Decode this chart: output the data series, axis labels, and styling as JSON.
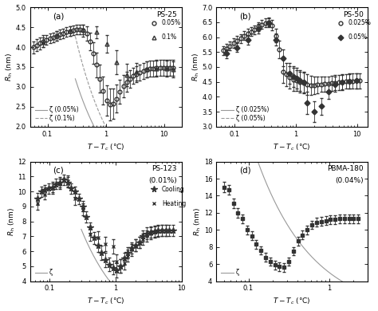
{
  "panels": [
    {
      "label": "(a)",
      "title": "PS-25",
      "legend_lines": [
        "ζ (0.05%)",
        "ζ (0.1%)"
      ],
      "legend_markers": [
        "0.05%",
        "0.1%"
      ],
      "marker_styles": [
        "o",
        "^"
      ],
      "marker_fills": [
        "open",
        "open"
      ],
      "ylim": [
        2.0,
        5.0
      ],
      "yticks": [
        2.0,
        2.5,
        3.0,
        3.5,
        4.0,
        4.5,
        5.0
      ],
      "xlim": [
        0.05,
        20
      ],
      "ylabel": "$R_\\mathrm{h}$ (nm)",
      "xlabel": "$T-T_c$ (°C)",
      "series1_x": [
        0.058,
        0.065,
        0.074,
        0.084,
        0.096,
        0.11,
        0.125,
        0.143,
        0.163,
        0.186,
        0.212,
        0.242,
        0.276,
        0.315,
        0.36,
        0.41,
        0.468,
        0.534,
        0.61,
        0.696,
        0.794,
        0.906,
        1.033,
        1.179,
        1.345,
        1.535,
        1.751,
        1.998,
        2.28,
        2.601,
        2.967,
        3.385,
        3.862,
        4.406,
        5.027,
        5.736,
        6.543,
        7.466,
        8.517,
        9.716,
        11.086,
        12.65,
        14.43
      ],
      "series1_y": [
        4.0,
        4.05,
        4.1,
        4.15,
        4.18,
        4.22,
        4.25,
        4.28,
        4.32,
        4.35,
        4.38,
        4.4,
        4.43,
        4.45,
        4.45,
        4.42,
        4.35,
        4.15,
        3.85,
        3.55,
        3.2,
        2.9,
        2.65,
        2.55,
        2.58,
        2.7,
        2.88,
        3.02,
        3.12,
        3.2,
        3.27,
        3.32,
        3.36,
        3.4,
        3.43,
        3.45,
        3.46,
        3.47,
        3.47,
        3.47,
        3.47,
        3.47,
        3.47
      ],
      "series1_yerr": [
        0.15,
        0.15,
        0.15,
        0.15,
        0.12,
        0.12,
        0.12,
        0.12,
        0.12,
        0.12,
        0.12,
        0.12,
        0.12,
        0.12,
        0.12,
        0.15,
        0.18,
        0.22,
        0.28,
        0.32,
        0.35,
        0.35,
        0.38,
        0.4,
        0.38,
        0.35,
        0.3,
        0.28,
        0.25,
        0.22,
        0.2,
        0.2,
        0.2,
        0.2,
        0.2,
        0.2,
        0.2,
        0.2,
        0.2,
        0.2,
        0.2,
        0.2,
        0.2
      ],
      "series2_x": [
        0.084,
        0.143,
        0.242,
        0.41,
        0.696,
        1.033,
        1.535,
        2.28,
        3.385,
        5.027,
        7.466,
        11.086,
        14.43
      ],
      "series2_y": [
        4.12,
        4.28,
        4.4,
        4.44,
        4.38,
        4.08,
        3.62,
        3.3,
        3.38,
        3.43,
        3.45,
        3.45,
        3.43
      ],
      "series2_yerr": [
        0.12,
        0.12,
        0.12,
        0.12,
        0.15,
        0.22,
        0.3,
        0.28,
        0.22,
        0.2,
        0.2,
        0.2,
        0.2
      ],
      "xi1_A": 1.5,
      "xi1_nu": 0.63,
      "xi2_A": 2.0,
      "xi2_nu": 0.63,
      "xi_xstart": 0.3,
      "xi_line_style": [
        "-",
        "--"
      ]
    },
    {
      "label": "(b)",
      "title": "PS-50",
      "legend_lines": [
        "ζ (0.025%)",
        "ζ (0.05%)"
      ],
      "legend_markers": [
        "0.025%",
        "0.05%"
      ],
      "marker_styles": [
        "o",
        "D"
      ],
      "marker_fills": [
        "open",
        "filled"
      ],
      "ylim": [
        3.0,
        7.0
      ],
      "yticks": [
        3.0,
        3.5,
        4.0,
        4.5,
        5.0,
        5.5,
        6.0,
        6.5,
        7.0
      ],
      "xlim": [
        0.05,
        15
      ],
      "ylabel": "$R_\\mathrm{h}$ (nm)",
      "xlabel": "$T-T_c$ (°C)",
      "series1_x": [
        0.065,
        0.074,
        0.084,
        0.096,
        0.11,
        0.125,
        0.143,
        0.163,
        0.186,
        0.212,
        0.242,
        0.276,
        0.315,
        0.36,
        0.41,
        0.468,
        0.534,
        0.61,
        0.696,
        0.794,
        0.906,
        1.033,
        1.179,
        1.345,
        1.535,
        1.751,
        1.998,
        2.28,
        2.601,
        2.967,
        3.385,
        3.862,
        4.406,
        5.027,
        5.736,
        6.543,
        7.466,
        8.517,
        9.716,
        11.086
      ],
      "series1_y": [
        5.55,
        5.62,
        5.7,
        5.8,
        5.88,
        5.95,
        6.05,
        6.12,
        6.18,
        6.25,
        6.35,
        6.42,
        6.48,
        6.5,
        6.4,
        6.05,
        5.58,
        4.85,
        4.75,
        4.65,
        4.58,
        4.55,
        4.5,
        4.46,
        4.42,
        4.38,
        4.38,
        4.4,
        4.42,
        4.43,
        4.44,
        4.46,
        4.47,
        4.48,
        4.5,
        4.52,
        4.53,
        4.53,
        4.54,
        4.54
      ],
      "series1_yerr": [
        0.15,
        0.15,
        0.15,
        0.15,
        0.15,
        0.15,
        0.15,
        0.15,
        0.15,
        0.15,
        0.15,
        0.15,
        0.15,
        0.15,
        0.18,
        0.22,
        0.3,
        0.38,
        0.38,
        0.38,
        0.38,
        0.35,
        0.35,
        0.35,
        0.35,
        0.32,
        0.3,
        0.28,
        0.25,
        0.25,
        0.25,
        0.25,
        0.25,
        0.25,
        0.25,
        0.25,
        0.25,
        0.25,
        0.25,
        0.25
      ],
      "series2_x": [
        0.074,
        0.11,
        0.163,
        0.242,
        0.36,
        0.468,
        0.61,
        0.794,
        0.906,
        1.033,
        1.179,
        1.345,
        1.535,
        1.998,
        2.601,
        3.385,
        4.406,
        5.736,
        7.466,
        9.716
      ],
      "series2_y": [
        5.45,
        5.65,
        5.9,
        6.28,
        6.48,
        5.92,
        5.3,
        4.78,
        4.68,
        4.62,
        4.55,
        4.5,
        3.8,
        3.5,
        3.68,
        4.18,
        4.42,
        4.48,
        4.52,
        4.54
      ],
      "series2_yerr": [
        0.15,
        0.15,
        0.15,
        0.15,
        0.15,
        0.2,
        0.28,
        0.35,
        0.35,
        0.35,
        0.35,
        0.35,
        0.38,
        0.35,
        0.28,
        0.25,
        0.25,
        0.25,
        0.25,
        0.25
      ],
      "xi1_A": 1.8,
      "xi1_nu": 0.63,
      "xi2_A": 2.4,
      "xi2_nu": 0.63,
      "xi_xstart": 1.0,
      "xi_line_style": [
        "-",
        "--"
      ]
    },
    {
      "label": "(c)",
      "title": "PS-123",
      "title2": "(0.01%)",
      "legend_lines": [
        "ζ"
      ],
      "legend_markers": [
        "Cooling",
        "Heating"
      ],
      "marker_styles": [
        "*",
        "x"
      ],
      "marker_fills": [
        "filled",
        "none"
      ],
      "ylim": [
        4.0,
        12.0
      ],
      "yticks": [
        4,
        5,
        6,
        7,
        8,
        9,
        10,
        11,
        12
      ],
      "xlim": [
        0.05,
        10
      ],
      "ylabel": "$R_\\mathrm{h}$ (nm)",
      "xlabel": "$T-T_c$ (°C)",
      "series1_x": [
        0.065,
        0.074,
        0.084,
        0.096,
        0.11,
        0.125,
        0.143,
        0.163,
        0.186,
        0.212,
        0.242,
        0.276,
        0.315,
        0.36,
        0.41,
        0.468,
        0.534,
        0.61,
        0.696,
        0.794,
        0.906,
        1.033,
        1.179,
        1.345,
        1.535,
        1.751,
        1.998,
        2.28,
        2.601,
        2.967,
        3.385,
        3.862,
        4.406,
        5.027,
        5.736,
        6.543,
        7.466
      ],
      "series1_y": [
        9.5,
        10.0,
        10.1,
        10.2,
        10.3,
        10.5,
        10.6,
        10.8,
        10.6,
        10.2,
        10.0,
        9.5,
        9.0,
        8.3,
        7.6,
        6.9,
        6.4,
        5.9,
        5.4,
        5.1,
        4.9,
        4.7,
        5.0,
        5.5,
        5.9,
        6.2,
        6.4,
        6.6,
        7.0,
        7.2,
        7.3,
        7.35,
        7.4,
        7.4,
        7.4,
        7.4,
        7.4
      ],
      "series1_yerr": [
        0.4,
        0.35,
        0.35,
        0.35,
        0.35,
        0.35,
        0.35,
        0.35,
        0.35,
        0.35,
        0.35,
        0.35,
        0.35,
        0.35,
        0.35,
        0.4,
        0.45,
        0.48,
        0.48,
        0.45,
        0.45,
        0.48,
        0.45,
        0.4,
        0.38,
        0.38,
        0.38,
        0.38,
        0.38,
        0.38,
        0.38,
        0.38,
        0.38,
        0.38,
        0.38,
        0.38,
        0.38
      ],
      "series2_x": [
        0.065,
        0.084,
        0.11,
        0.143,
        0.186,
        0.242,
        0.315,
        0.41,
        0.534,
        0.696,
        0.906,
        1.033,
        1.179,
        1.345,
        1.535,
        1.751,
        1.998,
        2.28,
        2.601,
        2.967,
        3.385,
        3.862,
        4.406,
        5.027,
        5.736
      ],
      "series2_y": [
        9.2,
        9.8,
        10.2,
        10.5,
        10.7,
        9.5,
        8.8,
        7.1,
        6.9,
        6.5,
        6.3,
        5.3,
        5.0,
        5.2,
        5.7,
        6.1,
        6.4,
        6.6,
        6.8,
        7.0,
        7.2,
        7.3,
        7.35,
        7.4,
        7.4
      ],
      "series2_yerr": [
        0.4,
        0.35,
        0.35,
        0.35,
        0.35,
        0.38,
        0.38,
        0.42,
        0.45,
        0.48,
        0.48,
        0.48,
        0.45,
        0.42,
        0.4,
        0.4,
        0.4,
        0.38,
        0.38,
        0.38,
        0.38,
        0.38,
        0.38,
        0.38,
        0.38
      ],
      "xi1_A": 3.5,
      "xi1_nu": 0.63,
      "xi_xstart": 0.3,
      "xi_line_style": [
        "-"
      ]
    },
    {
      "label": "(d)",
      "title": "PBMA-180",
      "title2": "(0.04%)",
      "legend_lines": [
        "ζ"
      ],
      "legend_markers": [],
      "marker_styles": [
        "s"
      ],
      "marker_fills": [
        "filled"
      ],
      "ylim": [
        4.0,
        18.0
      ],
      "yticks": [
        4,
        6,
        8,
        10,
        12,
        14,
        16,
        18
      ],
      "xlim": [
        0.04,
        3
      ],
      "ylabel": "$R_\\mathrm{h}$ (nm)",
      "xlabel": "$T-T_c$ (°C)",
      "series1_x": [
        0.05,
        0.057,
        0.065,
        0.074,
        0.084,
        0.096,
        0.11,
        0.125,
        0.143,
        0.163,
        0.186,
        0.212,
        0.242,
        0.276,
        0.315,
        0.36,
        0.41,
        0.468,
        0.534,
        0.61,
        0.696,
        0.794,
        0.906,
        1.033,
        1.179,
        1.345,
        1.535,
        1.751,
        1.998,
        2.28
      ],
      "series1_y": [
        15.0,
        14.7,
        13.1,
        12.0,
        11.3,
        10.0,
        9.3,
        8.3,
        7.6,
        6.8,
        6.3,
        5.9,
        5.7,
        5.6,
        6.3,
        7.5,
        8.7,
        9.4,
        10.0,
        10.6,
        10.9,
        11.0,
        11.1,
        11.2,
        11.2,
        11.3,
        11.3,
        11.3,
        11.3,
        11.3
      ],
      "series1_yerr": [
        0.6,
        0.6,
        0.55,
        0.55,
        0.5,
        0.5,
        0.5,
        0.5,
        0.5,
        0.5,
        0.5,
        0.5,
        0.5,
        0.5,
        0.5,
        0.5,
        0.5,
        0.5,
        0.5,
        0.5,
        0.5,
        0.5,
        0.5,
        0.5,
        0.5,
        0.5,
        0.5,
        0.5,
        0.5,
        0.5
      ],
      "xi1_A": 5.0,
      "xi1_nu": 0.63,
      "xi_xstart": 0.07,
      "xi_line_style": [
        "-"
      ]
    }
  ],
  "figure_bgcolor": "#ffffff",
  "panel_bgcolor": "#ffffff",
  "data_color": "#333333",
  "xi_color": "#999999",
  "marker_size": 3.5,
  "elinewidth": 0.6,
  "capsize": 1.2
}
